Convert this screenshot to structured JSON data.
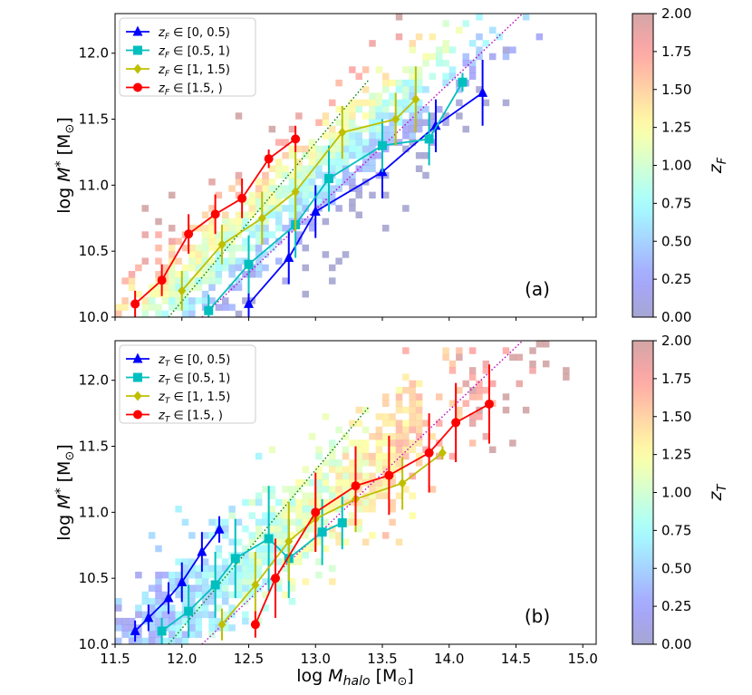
{
  "chart_data": [
    {
      "panel": "(a)",
      "type": "scatter",
      "xlabel": "log M_halo [M_⊙]",
      "ylabel": "log M_* [M_⊙]",
      "xlim": [
        11.5,
        15.1
      ],
      "ylim": [
        10.0,
        12.3
      ],
      "xticks": [
        11.5,
        12.0,
        12.5,
        13.0,
        13.5,
        14.0,
        14.5,
        15.0
      ],
      "yticks": [
        10.0,
        10.5,
        11.0,
        11.5,
        12.0
      ],
      "show_x_ticklabels": false,
      "legend_position": "top-left",
      "colorbar": {
        "label": "z_F",
        "range": [
          0.0,
          2.0
        ],
        "ticks": [
          "0.00",
          "0.25",
          "0.50",
          "0.75",
          "1.00",
          "1.25",
          "1.50",
          "1.75",
          "2.00"
        ]
      },
      "background": "2D histogram of individual galaxies colour-coded by formation redshift z_F",
      "series": [
        {
          "name": "z_F ∈ [0, 0.5)",
          "color": "#0000ff",
          "marker": "triangle",
          "x": [
            12.5,
            12.8,
            13.0,
            13.5,
            13.9,
            14.25
          ],
          "y": [
            10.1,
            10.45,
            10.8,
            11.1,
            11.45,
            11.7
          ],
          "err": [
            0.1,
            0.2,
            0.2,
            0.2,
            0.2,
            0.25
          ]
        },
        {
          "name": "z_F ∈ [0.5, 1)",
          "color": "#00bfbf",
          "marker": "square",
          "x": [
            12.2,
            12.5,
            12.85,
            13.1,
            13.5,
            13.85,
            14.1
          ],
          "y": [
            10.05,
            10.4,
            10.7,
            11.05,
            11.3,
            11.35,
            11.78
          ],
          "err": [
            0.12,
            0.22,
            0.25,
            0.25,
            0.2,
            0.2,
            0.07
          ]
        },
        {
          "name": "z_F ∈ [1, 1.5)",
          "color": "#bfbf00",
          "marker": "diamond",
          "x": [
            12.0,
            12.3,
            12.6,
            12.85,
            13.2,
            13.6,
            13.75
          ],
          "y": [
            10.2,
            10.55,
            10.75,
            10.95,
            11.4,
            11.5,
            11.65
          ],
          "err": [
            0.15,
            0.15,
            0.2,
            0.3,
            0.2,
            0.2,
            0.25
          ]
        },
        {
          "name": "z_F ∈ [1.5, )",
          "color": "#ff0000",
          "marker": "circle",
          "x": [
            11.65,
            11.85,
            12.05,
            12.25,
            12.45,
            12.65,
            12.85
          ],
          "y": [
            10.1,
            10.28,
            10.63,
            10.78,
            10.9,
            11.2,
            11.35
          ],
          "err": [
            0.1,
            0.12,
            0.15,
            0.15,
            0.15,
            0.07,
            0.1
          ]
        }
      ]
    },
    {
      "panel": "(b)",
      "type": "scatter",
      "xlabel": "log M_halo [M_⊙]",
      "ylabel": "log M_* [M_⊙]",
      "xlim": [
        11.5,
        15.1
      ],
      "ylim": [
        10.0,
        12.3
      ],
      "xticks": [
        11.5,
        12.0,
        12.5,
        13.0,
        13.5,
        14.0,
        14.5,
        15.0
      ],
      "yticks": [
        10.0,
        10.5,
        11.0,
        11.5,
        12.0
      ],
      "show_x_ticklabels": true,
      "legend_position": "top-left",
      "colorbar": {
        "label": "z_T",
        "range": [
          0.0,
          2.0
        ],
        "ticks": [
          "0.00",
          "0.25",
          "0.50",
          "0.75",
          "1.00",
          "1.25",
          "1.50",
          "1.75",
          "2.00"
        ]
      },
      "background": "2D histogram of individual galaxies colour-coded by transition redshift z_T",
      "series": [
        {
          "name": "z_T ∈ [0, 0.5)",
          "color": "#0000ff",
          "marker": "triangle",
          "x": [
            11.65,
            11.75,
            11.9,
            12.0,
            12.15,
            12.28
          ],
          "y": [
            10.1,
            10.2,
            10.35,
            10.47,
            10.7,
            10.87
          ],
          "err": [
            0.08,
            0.1,
            0.12,
            0.15,
            0.15,
            0.1
          ]
        },
        {
          "name": "z_T ∈ [0.5, 1)",
          "color": "#00bfbf",
          "marker": "square",
          "x": [
            11.85,
            12.05,
            12.25,
            12.4,
            12.65,
            12.8,
            13.05,
            13.2
          ],
          "y": [
            10.1,
            10.25,
            10.45,
            10.65,
            10.8,
            10.65,
            10.85,
            10.92
          ],
          "err": [
            0.1,
            0.2,
            0.25,
            0.3,
            0.4,
            0.3,
            0.25,
            0.2
          ]
        },
        {
          "name": "z_T ∈ [1, 1.5)",
          "color": "#bfbf00",
          "marker": "diamond",
          "x": [
            12.3,
            12.55,
            12.8,
            13.0,
            13.3,
            13.65,
            13.95
          ],
          "y": [
            10.15,
            10.45,
            10.78,
            10.95,
            11.1,
            11.22,
            11.45
          ],
          "err": [
            0.12,
            0.25,
            0.3,
            0.25,
            0.25,
            0.2,
            0.05
          ]
        },
        {
          "name": "z_T ∈ [1.5, )",
          "color": "#ff0000",
          "marker": "circle",
          "x": [
            12.55,
            12.7,
            13.0,
            13.3,
            13.55,
            13.85,
            14.05,
            14.3
          ],
          "y": [
            10.15,
            10.5,
            11.0,
            11.2,
            11.28,
            11.45,
            11.68,
            11.82
          ],
          "err": [
            0.1,
            0.3,
            0.3,
            0.3,
            0.3,
            0.3,
            0.3,
            0.3
          ]
        }
      ]
    }
  ],
  "reference_lines": [
    {
      "color": "#008000",
      "style": "dotted",
      "x": [
        11.9,
        13.4
      ],
      "y": [
        10.0,
        11.8
      ]
    },
    {
      "color": "#c000c0",
      "style": "dotted",
      "x": [
        12.15,
        14.55
      ],
      "y": [
        10.0,
        12.3
      ]
    }
  ]
}
